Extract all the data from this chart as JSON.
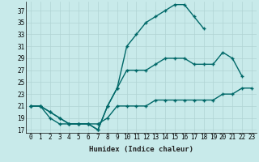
{
  "xlabel": "Humidex (Indice chaleur)",
  "background_color": "#c8eaea",
  "grid_color": "#b0d4d4",
  "line_color": "#006868",
  "xlim": [
    -0.5,
    23.5
  ],
  "ylim": [
    16.5,
    38.5
  ],
  "xticks": [
    0,
    1,
    2,
    3,
    4,
    5,
    6,
    7,
    8,
    9,
    10,
    11,
    12,
    13,
    14,
    15,
    16,
    17,
    18,
    19,
    20,
    21,
    22,
    23
  ],
  "yticks": [
    17,
    19,
    21,
    23,
    25,
    27,
    29,
    31,
    33,
    35,
    37
  ],
  "line1_x": [
    0,
    1,
    2,
    3,
    4,
    5,
    6,
    7,
    8,
    9,
    10,
    11,
    12,
    13,
    14,
    15,
    16,
    17,
    18
  ],
  "line1_y": [
    21,
    21,
    20,
    19,
    18,
    18,
    18,
    17,
    21,
    24,
    31,
    33,
    35,
    36,
    37,
    38,
    38,
    36,
    34
  ],
  "line2_x": [
    0,
    1,
    2,
    3,
    4,
    5,
    6,
    7,
    8,
    9,
    10,
    11,
    12,
    13,
    14,
    15,
    16,
    17,
    18,
    19,
    20,
    21,
    22
  ],
  "line2_y": [
    21,
    21,
    20,
    19,
    18,
    18,
    18,
    17,
    21,
    24,
    27,
    27,
    27,
    28,
    29,
    29,
    29,
    28,
    28,
    28,
    30,
    29,
    26
  ],
  "line3_x": [
    0,
    1,
    2,
    3,
    4,
    5,
    6,
    7,
    8,
    9,
    10,
    11,
    12,
    13,
    14,
    15,
    16,
    17,
    18,
    19,
    20,
    21,
    22,
    23
  ],
  "line3_y": [
    21,
    21,
    19,
    18,
    18,
    18,
    18,
    18,
    19,
    21,
    21,
    21,
    21,
    22,
    22,
    22,
    22,
    22,
    22,
    22,
    23,
    23,
    24,
    24
  ]
}
